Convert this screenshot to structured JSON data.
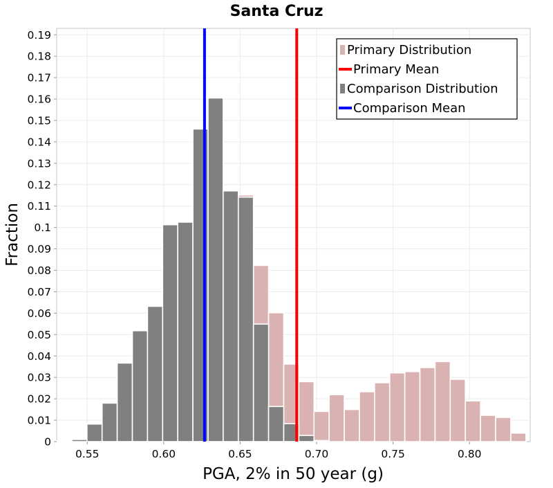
{
  "chart_data": {
    "type": "bar",
    "title": "Santa Cruz",
    "xlabel": "PGA, 2% in 50 year (g)",
    "ylabel": "Fraction",
    "xlim": [
      0.53,
      0.8397
    ],
    "ylim": [
      0,
      0.193
    ],
    "x_ticks": [
      0.55,
      0.6,
      0.65,
      0.7,
      0.75,
      0.8
    ],
    "x_tick_labels": [
      "0.55",
      "0.60",
      "0.65",
      "0.70",
      "0.75",
      "0.80"
    ],
    "y_ticks": [
      0,
      0.01,
      0.02,
      0.03,
      0.04,
      0.05,
      0.06,
      0.07,
      0.08,
      0.09,
      0.1,
      0.11,
      0.12,
      0.13,
      0.14,
      0.15,
      0.16,
      0.17,
      0.18,
      0.19
    ],
    "y_tick_labels": [
      "0",
      "0.01",
      "0.02",
      "0.03",
      "0.04",
      "0.05",
      "0.06",
      "0.07",
      "0.08",
      "0.09",
      "0.1",
      "0.11",
      "0.12",
      "0.13",
      "0.14",
      "0.15",
      "0.16",
      "0.17",
      "0.18",
      "0.19"
    ],
    "grid": true,
    "legend_position": "top-right",
    "bin_width": 0.0099,
    "series": [
      {
        "name": "Primary Distribution",
        "kind": "histogram",
        "color": "#dbb2b2",
        "bin_starts": [
          0.53,
          0.5399,
          0.5498,
          0.5597,
          0.5696,
          0.5795,
          0.5894,
          0.5993,
          0.6092,
          0.6191,
          0.629,
          0.6389,
          0.6488,
          0.6587,
          0.6686,
          0.6785,
          0.6884,
          0.6983,
          0.7082,
          0.7181,
          0.728,
          0.7379,
          0.7478,
          0.7577,
          0.7676,
          0.7775,
          0.7874,
          0.7973,
          0.8072,
          0.8171,
          0.827
        ],
        "values": [
          0.0005,
          0.001,
          0.0082,
          0.018,
          0.0367,
          0.0518,
          0.0632,
          0.1013,
          0.1025,
          0.146,
          0.1605,
          0.1171,
          0.1152,
          0.0823,
          0.0602,
          0.0362,
          0.028,
          0.0141,
          0.0219,
          0.015,
          0.0233,
          0.0275,
          0.0321,
          0.0327,
          0.0346,
          0.0374,
          0.0291,
          0.019,
          0.0123,
          0.0113,
          0.004
        ]
      },
      {
        "name": "Primary Mean",
        "kind": "vline",
        "color": "#ff0000",
        "x": 0.687
      },
      {
        "name": "Comparison Distribution",
        "kind": "histogram",
        "color": "#808080",
        "bin_starts": [
          0.53,
          0.5399,
          0.5498,
          0.5597,
          0.5696,
          0.5795,
          0.5894,
          0.5993,
          0.6092,
          0.6191,
          0.629,
          0.6389,
          0.6488,
          0.6587,
          0.6686,
          0.6785,
          0.6884,
          0.6983
        ],
        "values": [
          0,
          0.001,
          0.0082,
          0.018,
          0.0367,
          0.0518,
          0.0632,
          0.1013,
          0.1025,
          0.146,
          0.1605,
          0.1171,
          0.1142,
          0.0549,
          0.0164,
          0.0084,
          0.0029,
          0.0005
        ]
      },
      {
        "name": "Comparison Mean",
        "kind": "vline",
        "color": "#0000ff",
        "x": 0.6267
      }
    ]
  }
}
